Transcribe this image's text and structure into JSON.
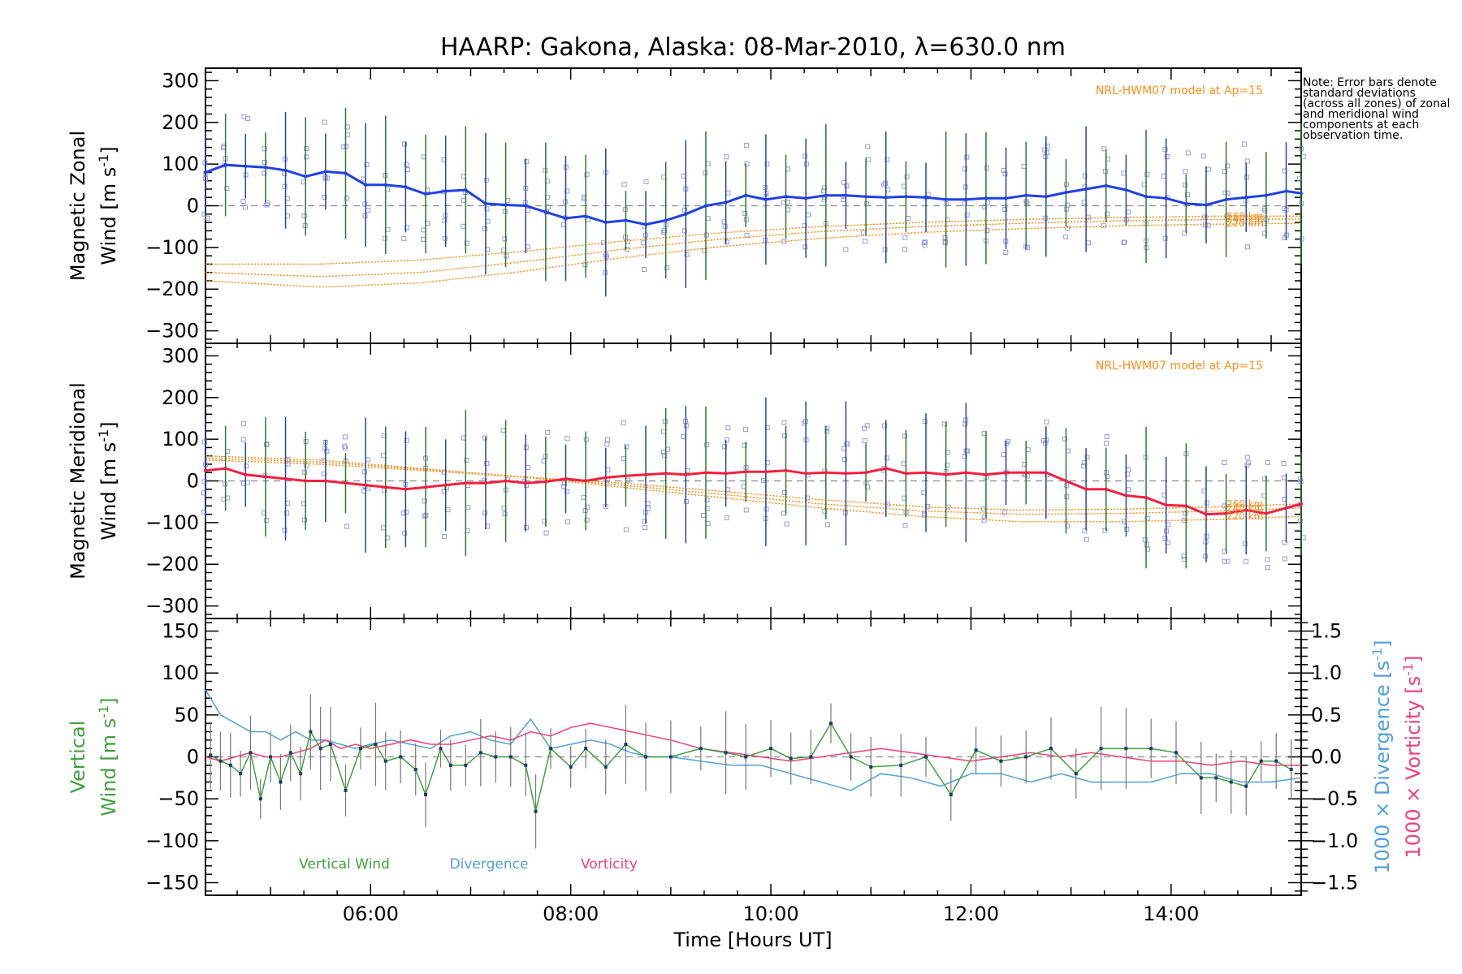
{
  "title": "HAARP: Gakona,  Alaska: 08-Mar-2010, λ=630.0 nm",
  "note": "Note: Error bars denote standard deviations (across all zones) of zonal and meridional wind components at each observation time.",
  "xaxis": {
    "label": "Time [Hours UT]",
    "range_hours": [
      4.35,
      15.3
    ],
    "ticks": [
      {
        "h": 6,
        "label": "06:00"
      },
      {
        "h": 8,
        "label": "08:00"
      },
      {
        "h": 10,
        "label": "10:00"
      },
      {
        "h": 12,
        "label": "12:00"
      },
      {
        "h": 14,
        "label": "14:00"
      }
    ]
  },
  "colors": {
    "zonal": "#2040e0",
    "meridional": "#f02040",
    "vertical": "#40a040",
    "divergence": "#50a0d8",
    "vorticity": "#f0407a",
    "model": "#ff8c1a",
    "samples": "#9999dd",
    "errorbar_a": "#1a4a9a",
    "errorbar_b": "#2a7a2a",
    "axis": "#000000"
  },
  "chart_data": [
    {
      "type": "line",
      "panel": "zonal",
      "ylabel_line1": "Magnetic Zonal",
      "ylabel_line2": "Wind [m s",
      "ylabel_sup": "-1",
      "ylabel_end": "]",
      "ylim": [
        -330,
        330
      ],
      "yticks": [
        -300,
        -200,
        -100,
        0,
        100,
        200,
        300
      ],
      "model_label": "NRL-HWM07 model at Ap=15",
      "model_heights": [
        "260 km",
        "240 km",
        "220 km"
      ],
      "series": [
        {
          "name": "Magnetic Zonal Wind",
          "x": [
            4.35,
            4.55,
            4.75,
            4.95,
            5.15,
            5.35,
            5.55,
            5.75,
            5.95,
            6.15,
            6.35,
            6.55,
            6.75,
            6.95,
            7.15,
            7.35,
            7.55,
            7.75,
            7.95,
            8.15,
            8.35,
            8.55,
            8.75,
            8.95,
            9.15,
            9.35,
            9.55,
            9.75,
            9.95,
            10.15,
            10.35,
            10.55,
            10.75,
            10.95,
            11.15,
            11.35,
            11.55,
            11.75,
            11.95,
            12.15,
            12.35,
            12.55,
            12.75,
            12.95,
            13.15,
            13.35,
            13.55,
            13.75,
            13.95,
            14.15,
            14.35,
            14.55,
            14.75,
            14.95,
            15.15,
            15.3
          ],
          "y": [
            80,
            98,
            95,
            92,
            85,
            70,
            82,
            78,
            50,
            50,
            45,
            28,
            35,
            38,
            5,
            2,
            0,
            -15,
            -30,
            -25,
            -40,
            -35,
            -45,
            -35,
            -20,
            0,
            8,
            25,
            15,
            22,
            18,
            25,
            25,
            22,
            20,
            22,
            20,
            15,
            15,
            18,
            18,
            25,
            22,
            32,
            40,
            48,
            38,
            22,
            18,
            5,
            2,
            15,
            20,
            25,
            35,
            30
          ]
        },
        {
          "name": "NRL-HWM07 260 km",
          "x": [
            4.35,
            5.5,
            6.5,
            7.5,
            8.5,
            9.5,
            10.5,
            11.5,
            12.5,
            13.5,
            14.5,
            15.3
          ],
          "y": [
            -140,
            -140,
            -130,
            -110,
            -85,
            -65,
            -50,
            -40,
            -33,
            -28,
            -25,
            -25
          ]
        },
        {
          "name": "NRL-HWM07 240 km",
          "x": [
            4.35,
            5.5,
            6.5,
            7.5,
            8.5,
            9.5,
            10.5,
            11.5,
            12.5,
            13.5,
            14.5,
            15.3
          ],
          "y": [
            -160,
            -170,
            -160,
            -135,
            -105,
            -80,
            -62,
            -50,
            -42,
            -36,
            -33,
            -32
          ]
        },
        {
          "name": "NRL-HWM07 220 km",
          "x": [
            4.35,
            5.5,
            6.5,
            7.5,
            8.5,
            9.5,
            10.5,
            11.5,
            12.5,
            13.5,
            14.5,
            15.3
          ],
          "y": [
            -180,
            -195,
            -185,
            -158,
            -125,
            -98,
            -78,
            -64,
            -55,
            -48,
            -44,
            -42
          ]
        }
      ]
    },
    {
      "type": "line",
      "panel": "meridional",
      "ylabel_line1": "Magnetic Meridional",
      "ylabel_line2": "Wind [m s",
      "ylabel_sup": "-1",
      "ylabel_end": "]",
      "ylim": [
        -330,
        330
      ],
      "yticks": [
        -300,
        -200,
        -100,
        0,
        100,
        200,
        300
      ],
      "model_label": "NRL-HWM07 model at Ap=15",
      "model_heights": [
        "260 km",
        "240 km",
        "220 km"
      ],
      "series": [
        {
          "name": "Magnetic Meridional Wind",
          "x": [
            4.35,
            4.55,
            4.75,
            4.95,
            5.15,
            5.35,
            5.55,
            5.75,
            5.95,
            6.15,
            6.35,
            6.55,
            6.75,
            6.95,
            7.15,
            7.35,
            7.55,
            7.75,
            7.95,
            8.15,
            8.35,
            8.55,
            8.75,
            8.95,
            9.15,
            9.35,
            9.55,
            9.75,
            9.95,
            10.15,
            10.35,
            10.55,
            10.75,
            10.95,
            11.15,
            11.35,
            11.55,
            11.75,
            11.95,
            12.15,
            12.35,
            12.55,
            12.75,
            12.95,
            13.15,
            13.35,
            13.55,
            13.75,
            13.95,
            14.15,
            14.35,
            14.55,
            14.75,
            14.95,
            15.15,
            15.3
          ],
          "y": [
            25,
            30,
            15,
            10,
            5,
            0,
            0,
            -5,
            -10,
            -15,
            -20,
            -15,
            -10,
            -5,
            -5,
            0,
            -5,
            -2,
            5,
            0,
            8,
            12,
            15,
            18,
            15,
            20,
            18,
            22,
            22,
            25,
            18,
            20,
            18,
            20,
            30,
            18,
            20,
            15,
            20,
            15,
            20,
            20,
            20,
            0,
            -20,
            -20,
            -35,
            -40,
            -58,
            -60,
            -80,
            -78,
            -70,
            -78,
            -65,
            -55
          ]
        },
        {
          "name": "NRL-HWM07 260 km",
          "x": [
            4.35,
            5.5,
            6.5,
            7.5,
            8.5,
            9.5,
            10.5,
            11.5,
            12.5,
            13.5,
            14.5,
            15.3
          ],
          "y": [
            50,
            40,
            25,
            10,
            -5,
            -25,
            -45,
            -62,
            -70,
            -68,
            -62,
            -55
          ]
        },
        {
          "name": "NRL-HWM07 240 km",
          "x": [
            4.35,
            5.5,
            6.5,
            7.5,
            8.5,
            9.5,
            10.5,
            11.5,
            12.5,
            13.5,
            14.5,
            15.3
          ],
          "y": [
            55,
            45,
            28,
            10,
            -10,
            -32,
            -55,
            -72,
            -80,
            -78,
            -72,
            -65
          ]
        },
        {
          "name": "NRL-HWM07 220 km",
          "x": [
            4.35,
            5.5,
            6.5,
            7.5,
            8.5,
            9.5,
            10.5,
            11.5,
            12.5,
            13.5,
            14.5,
            15.3
          ],
          "y": [
            60,
            50,
            30,
            10,
            -15,
            -40,
            -65,
            -85,
            -98,
            -98,
            -92,
            -85
          ]
        }
      ]
    },
    {
      "type": "line",
      "panel": "vertical",
      "ylabel_line1": "Vertical",
      "ylabel_line2": "Wind [m s",
      "ylabel_sup": "-1",
      "ylabel_end": "]",
      "ylim": [
        -165,
        165
      ],
      "yticks": [
        -150,
        -100,
        -50,
        0,
        50,
        100,
        150
      ],
      "y2lim": [
        -1.65,
        1.65
      ],
      "y2ticks": [
        -1.5,
        -1.0,
        -0.5,
        0.0,
        0.5,
        1.0,
        1.5
      ],
      "y2label_div": "1000 × Divergence [s",
      "y2label_vort": "1000 × Vorticity [s",
      "y2label_sup": "-1",
      "y2label_end": "]",
      "legend": [
        "Vertical Wind",
        "Divergence",
        "Vorticity"
      ],
      "series": [
        {
          "name": "Vertical Wind",
          "x": [
            4.4,
            4.5,
            4.6,
            4.7,
            4.8,
            4.9,
            5.0,
            5.1,
            5.2,
            5.3,
            5.4,
            5.5,
            5.6,
            5.75,
            5.9,
            6.05,
            6.15,
            6.3,
            6.45,
            6.55,
            6.7,
            6.8,
            6.95,
            7.1,
            7.25,
            7.4,
            7.55,
            7.65,
            7.8,
            8.0,
            8.15,
            8.35,
            8.55,
            8.75,
            9.0,
            9.3,
            9.55,
            9.75,
            10.0,
            10.2,
            10.4,
            10.6,
            10.8,
            11.0,
            11.3,
            11.55,
            11.8,
            12.05,
            12.3,
            12.55,
            12.8,
            13.05,
            13.3,
            13.55,
            13.8,
            14.05,
            14.3,
            14.45,
            14.6,
            14.75,
            14.9,
            15.05,
            15.2
          ],
          "y": [
            2,
            -5,
            -10,
            -20,
            5,
            -50,
            0,
            -30,
            5,
            -20,
            30,
            10,
            15,
            -40,
            10,
            15,
            -5,
            0,
            -15,
            -45,
            10,
            -10,
            -10,
            5,
            0,
            0,
            -10,
            -65,
            10,
            -12,
            10,
            -12,
            15,
            0,
            0,
            10,
            5,
            0,
            10,
            -2,
            0,
            40,
            0,
            -12,
            -10,
            0,
            -45,
            8,
            -5,
            0,
            10,
            -20,
            10,
            10,
            10,
            5,
            -25,
            -25,
            -30,
            -35,
            -5,
            -5,
            -15
          ]
        },
        {
          "name": "Divergence",
          "x": [
            4.35,
            4.5,
            4.65,
            4.8,
            4.95,
            5.1,
            5.25,
            5.4,
            5.55,
            5.7,
            5.85,
            6.0,
            6.2,
            6.4,
            6.6,
            6.8,
            7.0,
            7.2,
            7.4,
            7.6,
            7.8,
            8.0,
            8.2,
            8.4,
            8.6,
            8.8,
            9.0,
            9.3,
            9.6,
            9.9,
            10.2,
            10.5,
            10.8,
            11.1,
            11.4,
            11.7,
            12.0,
            12.3,
            12.6,
            12.9,
            13.2,
            13.5,
            13.8,
            14.1,
            14.4,
            14.7,
            15.0,
            15.3
          ],
          "y": [
            0.8,
            0.5,
            0.4,
            0.3,
            0.3,
            0.2,
            0.3,
            0.2,
            0.2,
            0.15,
            0.1,
            0.15,
            0.2,
            0.15,
            0.1,
            0.25,
            0.3,
            0.2,
            0.15,
            0.45,
            0.1,
            0.15,
            0.2,
            0.15,
            0.05,
            0.0,
            0.0,
            -0.05,
            -0.1,
            -0.1,
            -0.2,
            -0.3,
            -0.4,
            -0.2,
            -0.25,
            -0.35,
            -0.2,
            -0.2,
            -0.3,
            -0.2,
            -0.3,
            -0.3,
            -0.3,
            -0.2,
            -0.2,
            -0.3,
            -0.3,
            -0.25
          ]
        },
        {
          "name": "Vorticity",
          "x": [
            4.35,
            4.5,
            4.65,
            4.8,
            4.95,
            5.1,
            5.25,
            5.4,
            5.55,
            5.7,
            5.85,
            6.0,
            6.2,
            6.4,
            6.6,
            6.8,
            7.0,
            7.2,
            7.4,
            7.6,
            7.8,
            8.0,
            8.2,
            8.4,
            8.6,
            8.8,
            9.0,
            9.3,
            9.6,
            9.9,
            10.2,
            10.5,
            10.8,
            11.1,
            11.4,
            11.7,
            12.0,
            12.3,
            12.6,
            12.9,
            13.2,
            13.5,
            13.8,
            14.1,
            14.4,
            14.7,
            15.0,
            15.3
          ],
          "y": [
            0.0,
            -0.05,
            0.0,
            0.05,
            0.0,
            0.0,
            0.05,
            0.1,
            0.2,
            0.1,
            0.15,
            0.1,
            0.15,
            0.2,
            0.15,
            0.15,
            0.2,
            0.25,
            0.2,
            0.3,
            0.25,
            0.35,
            0.4,
            0.35,
            0.3,
            0.25,
            0.2,
            0.1,
            0.05,
            0.0,
            -0.05,
            0.0,
            0.05,
            0.1,
            0.05,
            0.0,
            -0.05,
            0.0,
            0.05,
            0.0,
            0.05,
            0.0,
            -0.05,
            -0.05,
            -0.1,
            -0.05,
            -0.1,
            -0.1
          ]
        }
      ]
    }
  ]
}
